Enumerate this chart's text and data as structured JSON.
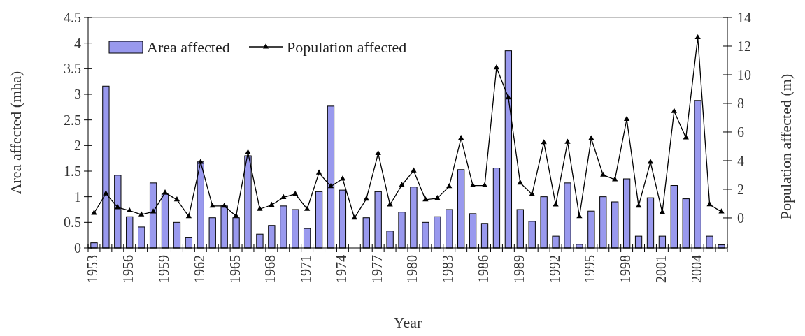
{
  "chart_data": {
    "type": "bar",
    "xlabel": "Year",
    "ylabel": "Area affected (mha)",
    "y2label": "Population affected (m)",
    "categories": [
      "1953",
      null,
      null,
      "1956",
      null,
      null,
      "1959",
      null,
      null,
      "1962",
      null,
      null,
      "1965",
      null,
      null,
      "1968",
      null,
      null,
      "1971",
      null,
      null,
      "1974",
      null,
      null,
      "1977",
      null,
      null,
      "1980",
      null,
      null,
      "1983",
      null,
      null,
      "1986",
      null,
      null,
      "1989",
      null,
      null,
      "1992",
      null,
      null,
      "1995",
      null,
      null,
      "1998",
      null,
      null,
      "2001",
      null,
      null,
      "2004",
      null,
      null
    ],
    "series": [
      {
        "name": "Area affected",
        "color": "#9999ee",
        "values": [
          0.1,
          3.16,
          1.42,
          0.61,
          0.41,
          1.27,
          1.05,
          0.5,
          0.21,
          1.68,
          0.59,
          0.82,
          0.59,
          1.8,
          0.27,
          0.44,
          0.82,
          0.75,
          0.38,
          1.1,
          2.77,
          1.13,
          0,
          0.59,
          1.1,
          0.33,
          0.7,
          1.19,
          0.5,
          0.61,
          0.75,
          1.53,
          0.67,
          0.48,
          1.56,
          3.85,
          0.75,
          0.52,
          1.0,
          0.23,
          1.27,
          0.07,
          0.72,
          1.0,
          0.9,
          1.35,
          0.23,
          0.98,
          0.23,
          1.22,
          0.96,
          2.88,
          0.23,
          0.06
        ]
      },
      {
        "name": "Population affected",
        "type": "line",
        "axis": "y2",
        "color": "#000000",
        "marker": "triangle",
        "values": [
          0.34,
          1.7,
          0.73,
          0.5,
          0.23,
          0.43,
          1.76,
          1.27,
          0.1,
          3.9,
          0.83,
          0.83,
          0.13,
          4.57,
          0.62,
          0.9,
          1.43,
          1.67,
          0.62,
          3.15,
          2.2,
          2.73,
          0,
          1.32,
          4.5,
          0.92,
          2.29,
          3.3,
          1.27,
          1.37,
          2.2,
          5.57,
          2.26,
          2.26,
          10.5,
          8.4,
          2.45,
          1.65,
          5.27,
          0.92,
          5.3,
          0.1,
          5.55,
          3.0,
          2.68,
          6.9,
          0.83,
          3.9,
          0.39,
          7.45,
          5.6,
          12.6,
          0.93,
          0.43
        ]
      }
    ],
    "ylim": [
      0,
      4.5
    ],
    "yticks": [
      0,
      0.5,
      1,
      1.5,
      2,
      2.5,
      3,
      3.5,
      4,
      4.5
    ],
    "y2lim": [
      -2.1,
      14
    ],
    "y2ticks": [
      0,
      2,
      4,
      6,
      8,
      10,
      12,
      14
    ],
    "legend": "top left",
    "grid": false
  }
}
